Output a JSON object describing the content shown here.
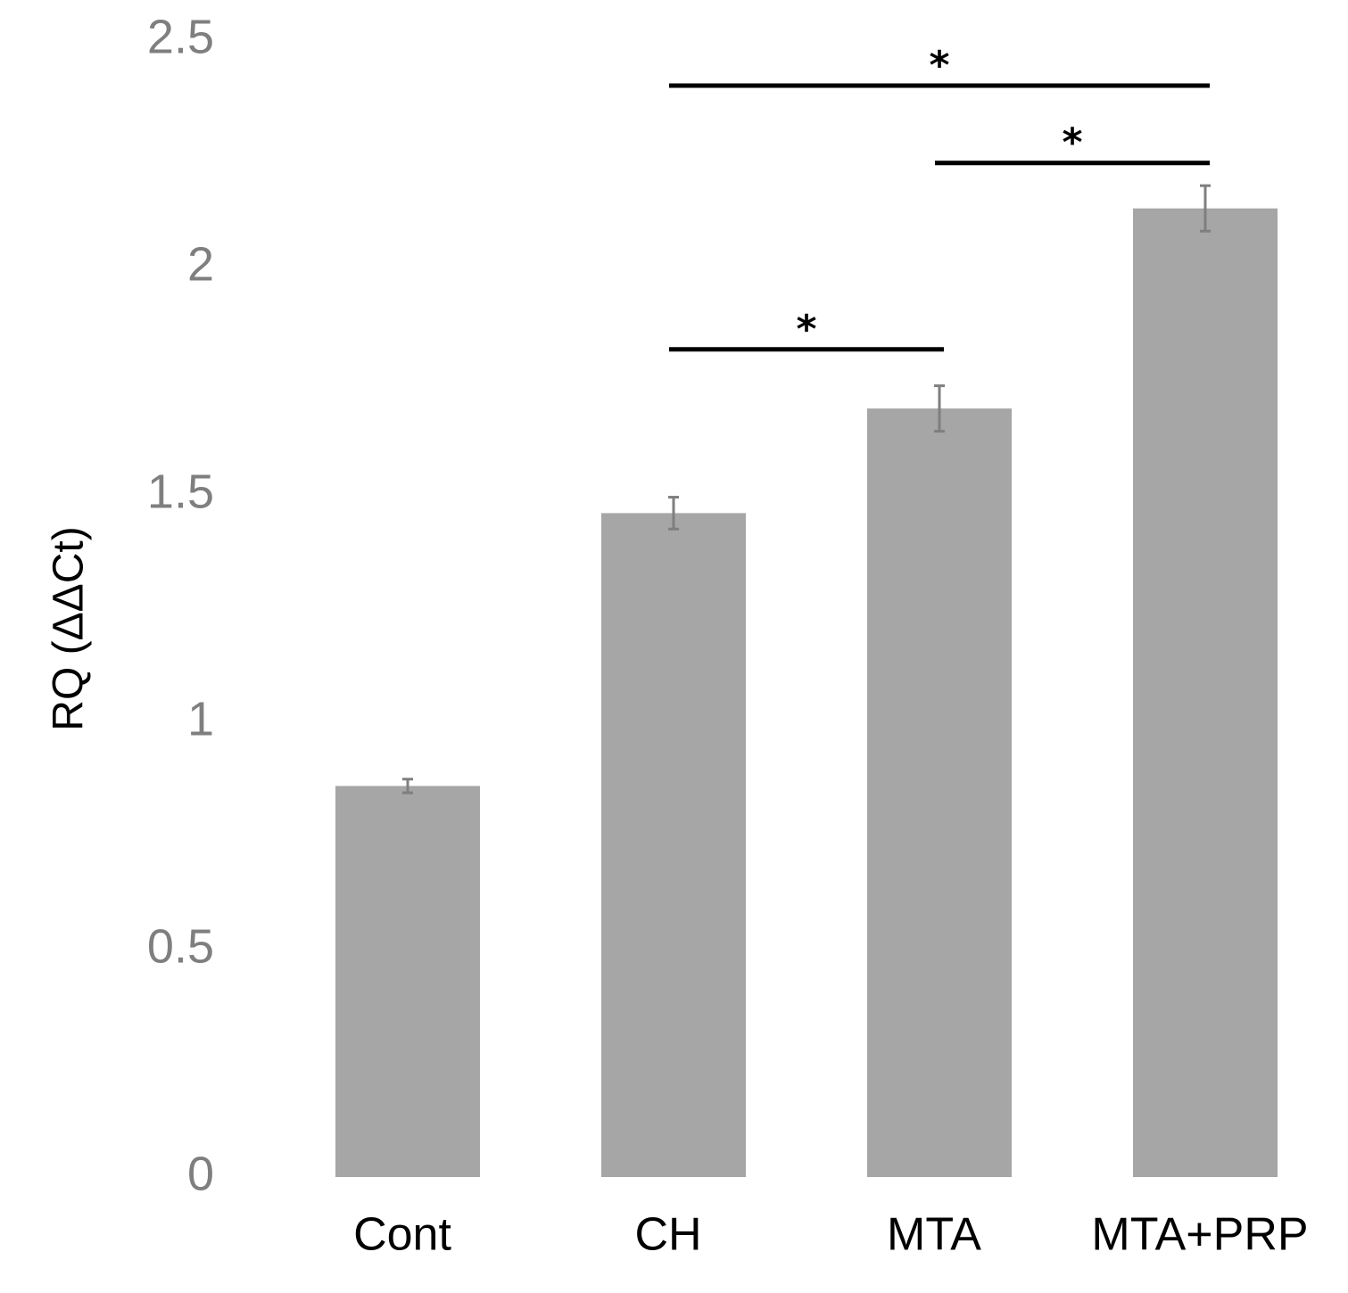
{
  "chart_data": {
    "type": "bar",
    "title": "",
    "xlabel": "",
    "ylabel": "RQ (ΔΔCt)",
    "ylim": [
      0,
      2.5
    ],
    "yticks": [
      0,
      0.5,
      1,
      1.5,
      2,
      2.5
    ],
    "ytick_labels": [
      "0",
      "0.5",
      "1",
      "1.5",
      "2",
      "2.5"
    ],
    "categories": [
      "Cont",
      "CH",
      "MTA",
      "MTA+PRP"
    ],
    "values": [
      0.86,
      1.46,
      1.69,
      2.13
    ],
    "errors": [
      0.015,
      0.035,
      0.05,
      0.05
    ],
    "bar_color": "#a6a6a6",
    "error_color": "#7f7f7f",
    "grid": false,
    "significance": [
      {
        "from": "CH",
        "to": "MTA+PRP",
        "level": 2.4,
        "label": "*"
      },
      {
        "from": "MTA",
        "to": "MTA+PRP",
        "level": 2.23,
        "label": "*"
      },
      {
        "from": "CH",
        "to": "MTA",
        "level": 1.82,
        "label": "*"
      }
    ]
  }
}
